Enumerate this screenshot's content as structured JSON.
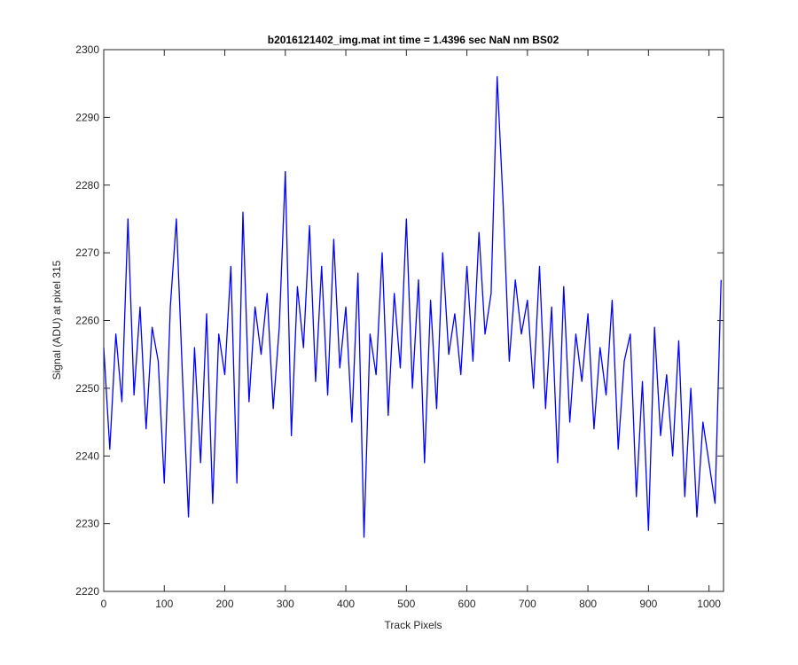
{
  "chart_data": {
    "type": "line",
    "title": "b2016121402_img.mat int time = 1.4396 sec  NaN nm BS02",
    "xlabel": "Track Pixels",
    "ylabel": "Signal (ADU) at pixel 315",
    "xlim": [
      0,
      1024
    ],
    "ylim": [
      2220,
      2300
    ],
    "xticks": [
      0,
      100,
      200,
      300,
      400,
      500,
      600,
      700,
      800,
      900,
      1000
    ],
    "yticks": [
      2220,
      2230,
      2240,
      2250,
      2260,
      2270,
      2280,
      2290,
      2300
    ],
    "grid": false,
    "legend": "none",
    "series": [
      {
        "color": "#0000ff",
        "x": [
          0,
          10,
          20,
          30,
          40,
          50,
          60,
          70,
          80,
          90,
          100,
          110,
          120,
          130,
          140,
          150,
          160,
          170,
          180,
          190,
          200,
          210,
          220,
          230,
          240,
          250,
          260,
          270,
          280,
          290,
          300,
          310,
          320,
          330,
          340,
          350,
          360,
          370,
          380,
          390,
          400,
          410,
          420,
          430,
          440,
          450,
          460,
          470,
          480,
          490,
          500,
          510,
          520,
          530,
          540,
          550,
          560,
          570,
          580,
          590,
          600,
          610,
          620,
          630,
          640,
          650,
          660,
          670,
          680,
          690,
          700,
          710,
          720,
          730,
          740,
          750,
          760,
          770,
          780,
          790,
          800,
          810,
          820,
          830,
          840,
          850,
          860,
          870,
          880,
          890,
          900,
          910,
          920,
          930,
          940,
          950,
          960,
          970,
          980,
          990,
          1000,
          1010,
          1020
        ],
        "y": [
          2256,
          2241,
          2258,
          2248,
          2275,
          2249,
          2262,
          2244,
          2259,
          2254,
          2236,
          2262,
          2275,
          2252,
          2231,
          2256,
          2239,
          2261,
          2233,
          2258,
          2252,
          2268,
          2236,
          2276,
          2248,
          2262,
          2255,
          2264,
          2247,
          2259,
          2282,
          2243,
          2265,
          2256,
          2274,
          2251,
          2268,
          2249,
          2272,
          2253,
          2262,
          2245,
          2267,
          2228,
          2258,
          2252,
          2270,
          2246,
          2264,
          2253,
          2275,
          2250,
          2266,
          2239,
          2263,
          2247,
          2270,
          2255,
          2261,
          2252,
          2268,
          2254,
          2273,
          2258,
          2264,
          2296,
          2277,
          2254,
          2266,
          2258,
          2263,
          2250,
          2268,
          2247,
          2262,
          2239,
          2265,
          2245,
          2258,
          2251,
          2261,
          2244,
          2256,
          2249,
          2263,
          2241,
          2254,
          2258,
          2234,
          2251,
          2229,
          2259,
          2243,
          2252,
          2240,
          2257,
          2234,
          2250,
          2231,
          2245,
          2239,
          2233,
          2266
        ]
      }
    ]
  }
}
